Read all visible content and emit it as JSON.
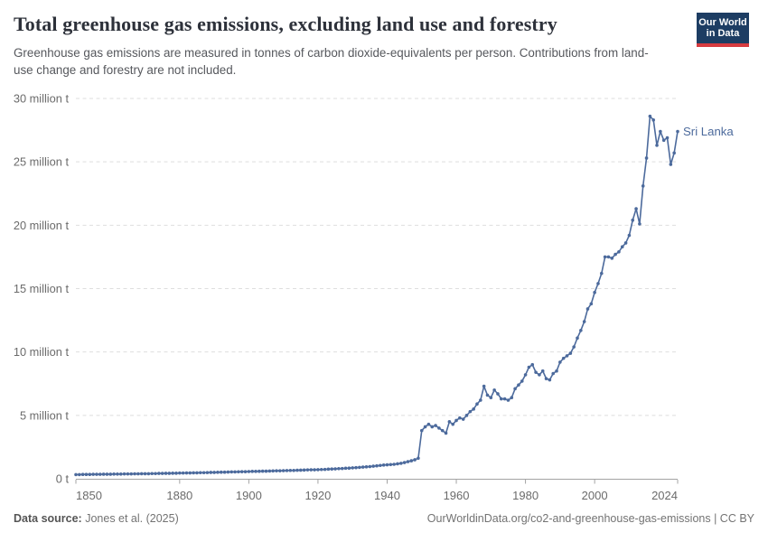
{
  "header": {
    "title": "Total greenhouse gas emissions, excluding land use and forestry",
    "subtitle": "Greenhouse gas emissions are measured in tonnes of carbon dioxide-equivalents per person. Contributions from land-use change and forestry are not included."
  },
  "logo": {
    "line1": "Our World",
    "line2": "in Data",
    "bg_color": "#1d3d63",
    "accent_color": "#d73b40"
  },
  "chart_data": {
    "type": "line",
    "title": "Total greenhouse gas emissions, excluding land use and forestry",
    "xlabel": "",
    "ylabel": "",
    "unit": "million t",
    "grid": "horizontal-dashed",
    "legend_position": "end-of-line-label",
    "xlim": [
      1850,
      2024
    ],
    "ylim": [
      0,
      30
    ],
    "x_ticks": [
      1850,
      1880,
      1900,
      1920,
      1940,
      1960,
      1980,
      2000,
      2024
    ],
    "y_ticks": [
      0,
      5,
      10,
      15,
      20,
      25,
      30
    ],
    "y_tick_labels": [
      "0 t",
      "5 million t",
      "10 million t",
      "15 million t",
      "20 million t",
      "25 million t",
      "30 million t"
    ],
    "series": [
      {
        "name": "Sri Lanka",
        "color": "#4c6a9c",
        "x_years": {
          "start": 1850,
          "end": 2024,
          "step": 1
        },
        "values": [
          0.33,
          0.33,
          0.34,
          0.34,
          0.34,
          0.35,
          0.35,
          0.35,
          0.36,
          0.36,
          0.36,
          0.37,
          0.37,
          0.37,
          0.38,
          0.38,
          0.38,
          0.39,
          0.39,
          0.4,
          0.4,
          0.4,
          0.41,
          0.41,
          0.42,
          0.42,
          0.43,
          0.43,
          0.44,
          0.44,
          0.45,
          0.45,
          0.46,
          0.46,
          0.47,
          0.47,
          0.48,
          0.48,
          0.49,
          0.5,
          0.5,
          0.51,
          0.52,
          0.52,
          0.53,
          0.54,
          0.54,
          0.55,
          0.56,
          0.56,
          0.57,
          0.58,
          0.58,
          0.59,
          0.6,
          0.6,
          0.61,
          0.62,
          0.63,
          0.63,
          0.64,
          0.65,
          0.66,
          0.66,
          0.67,
          0.68,
          0.69,
          0.7,
          0.71,
          0.71,
          0.72,
          0.73,
          0.74,
          0.76,
          0.77,
          0.78,
          0.8,
          0.81,
          0.83,
          0.84,
          0.86,
          0.88,
          0.9,
          0.92,
          0.94,
          0.96,
          0.99,
          1.02,
          1.05,
          1.08,
          1.1,
          1.12,
          1.14,
          1.18,
          1.22,
          1.28,
          1.35,
          1.42,
          1.5,
          1.62,
          3.8,
          4.1,
          4.3,
          4.1,
          4.2,
          4.0,
          3.8,
          3.6,
          4.5,
          4.3,
          4.6,
          4.8,
          4.7,
          5.0,
          5.3,
          5.5,
          5.9,
          6.2,
          7.3,
          6.6,
          6.4,
          7.0,
          6.7,
          6.3,
          6.3,
          6.2,
          6.4,
          7.1,
          7.4,
          7.7,
          8.2,
          8.8,
          9.0,
          8.4,
          8.2,
          8.5,
          7.9,
          7.8,
          8.3,
          8.5,
          9.2,
          9.5,
          9.7,
          9.9,
          10.4,
          11.1,
          11.7,
          12.4,
          13.4,
          13.8,
          14.7,
          15.4,
          16.2,
          17.5,
          17.5,
          17.4,
          17.7,
          17.9,
          18.3,
          18.6,
          19.2,
          20.4,
          21.3,
          20.1,
          23.1,
          25.3,
          28.6,
          28.3,
          26.3,
          27.4,
          26.7,
          26.9,
          24.8,
          25.7,
          27.4
        ]
      }
    ]
  },
  "colors": {
    "line": "#4c6a9c",
    "entity_label": "#4c6a9c",
    "gridline": "#dedede",
    "axis_line": "#a3a3a3",
    "tick_text": "#6b6b6b"
  },
  "footer": {
    "source_label": "Data source:",
    "source_value": " Jones et al. (2025)",
    "right_text": "OurWorldinData.org/co2-and-greenhouse-gas-emissions | CC BY"
  }
}
